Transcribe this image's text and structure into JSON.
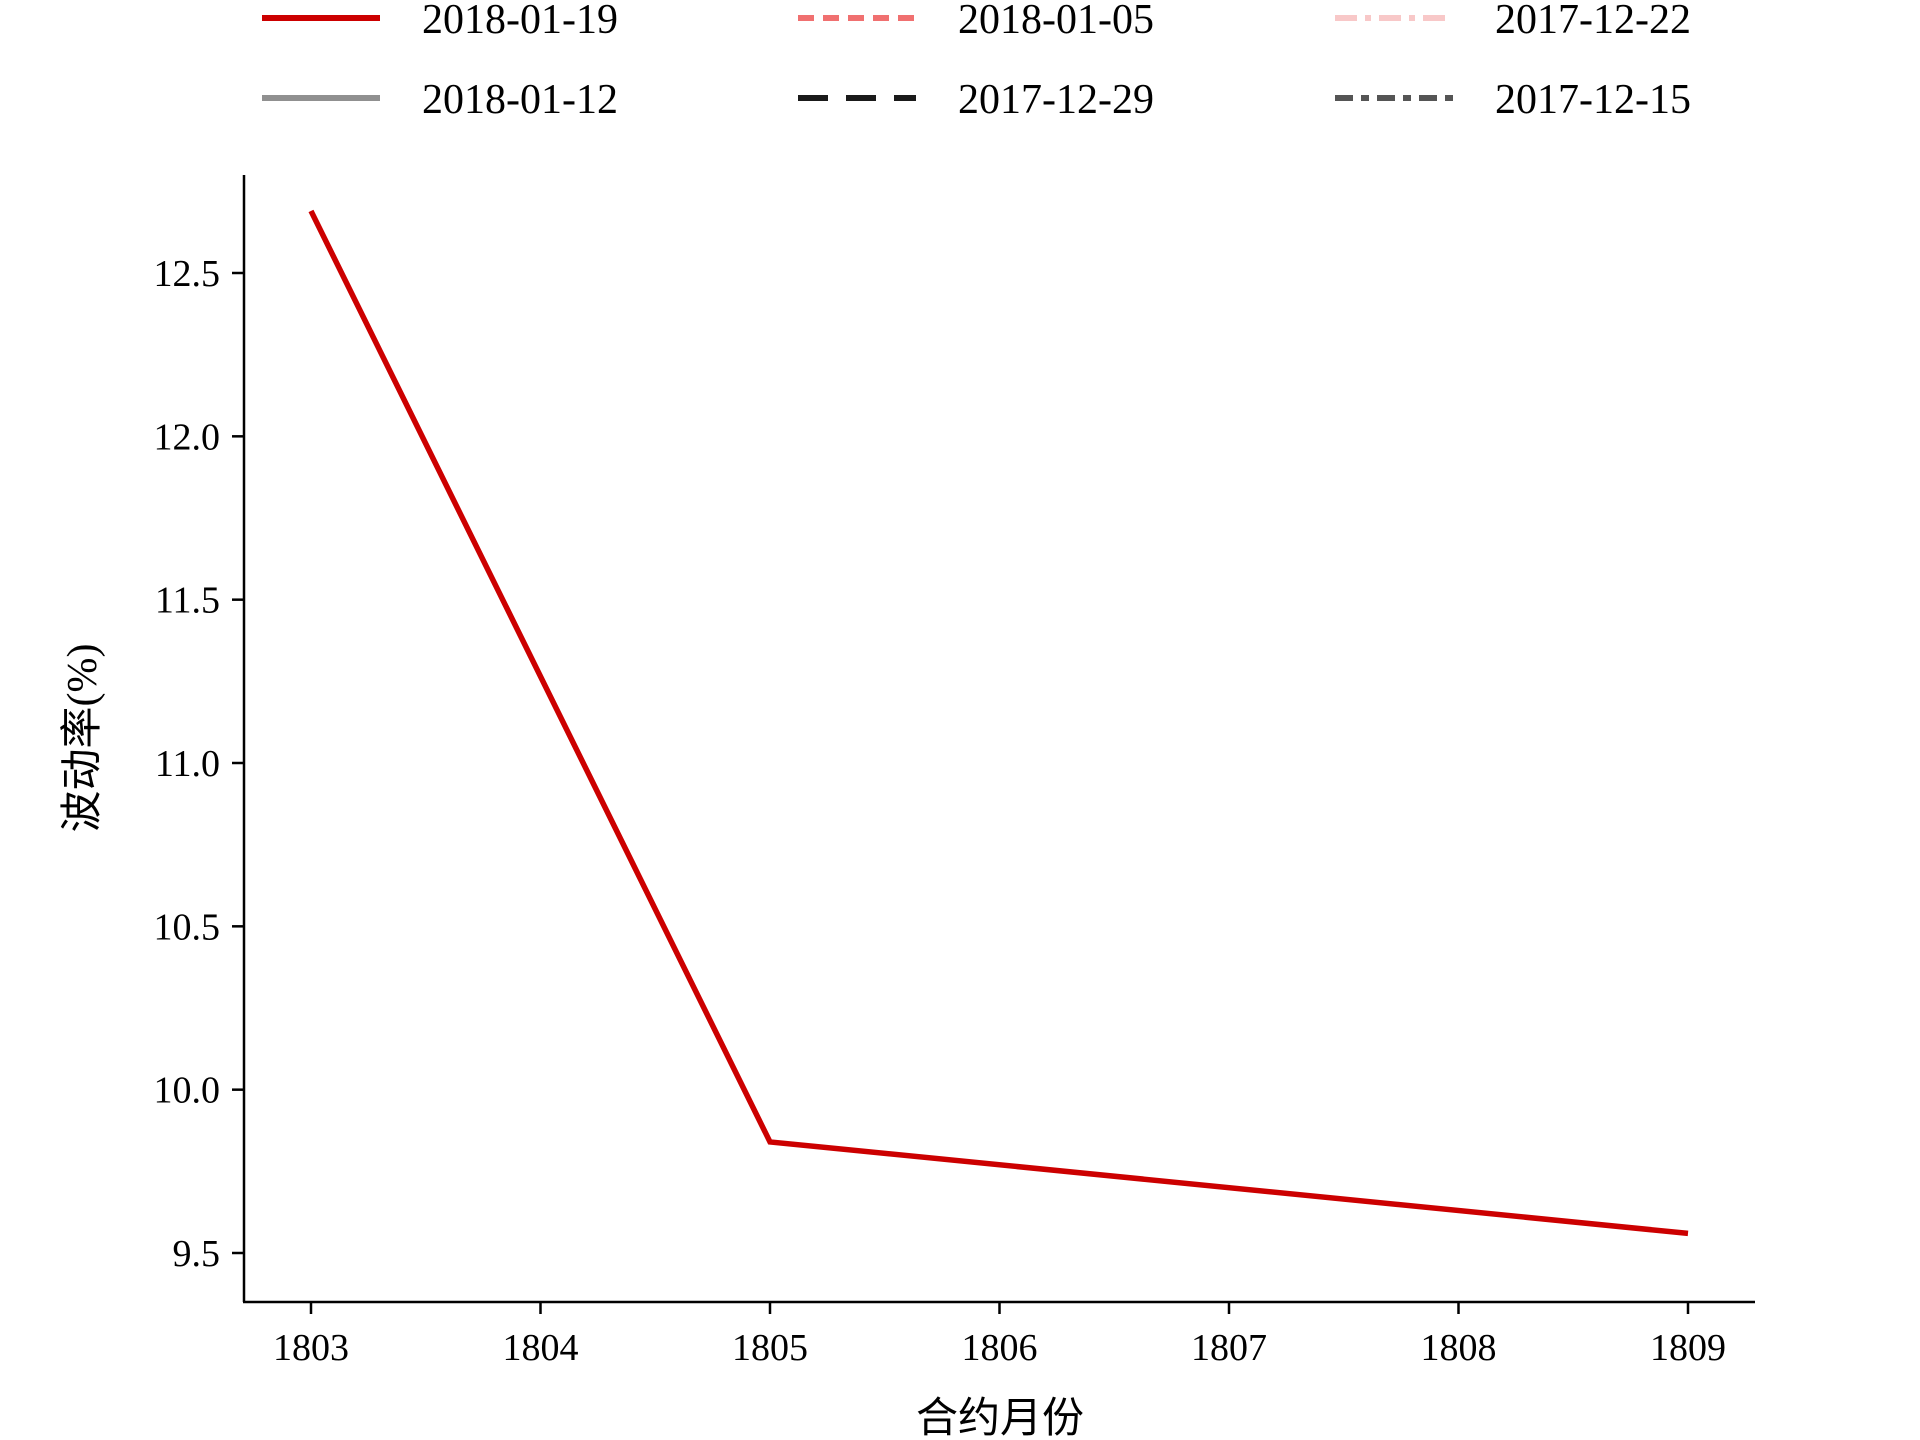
{
  "chart_data": {
    "type": "line",
    "xlabel": "合约月份",
    "ylabel": "波动率(%)",
    "categories": [
      "1803",
      "1804",
      "1805",
      "1806",
      "1807",
      "1808",
      "1809"
    ],
    "ylim": [
      9.35,
      12.8
    ],
    "yticks": [
      9.5,
      10.0,
      10.5,
      11.0,
      11.5,
      12.0,
      12.5
    ],
    "ytick_labels": [
      "9.5",
      "10.0",
      "10.5",
      "11.0",
      "11.5",
      "12.0",
      "12.5"
    ],
    "grid": false,
    "legend_position": "top",
    "series": [
      {
        "name": "2018-01-19",
        "color": "#cc0000",
        "style": "solid",
        "points": [
          {
            "x": "1803",
            "y": 12.69
          },
          {
            "x": "1805",
            "y": 9.84
          },
          {
            "x": "1809",
            "y": 9.56
          }
        ]
      },
      {
        "name": "2018-01-12",
        "color": "#909090",
        "style": "solid",
        "points": []
      },
      {
        "name": "2018-01-05",
        "color": "#f07070",
        "style": "dashed",
        "points": []
      },
      {
        "name": "2017-12-29",
        "color": "#1a1a1a",
        "style": "longdash",
        "points": []
      },
      {
        "name": "2017-12-22",
        "color": "#f8c8c8",
        "style": "dashdot",
        "points": []
      },
      {
        "name": "2017-12-15",
        "color": "#555555",
        "style": "dashdotted",
        "points": []
      }
    ]
  }
}
